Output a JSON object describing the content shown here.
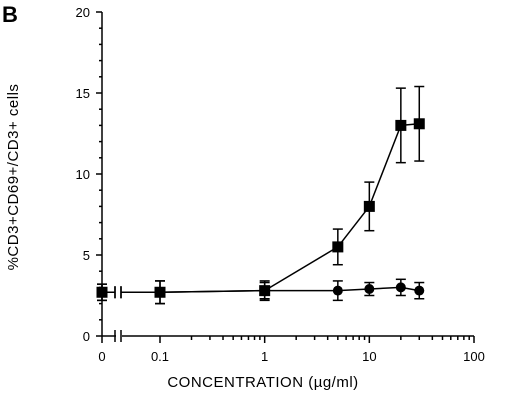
{
  "panel_label": "B",
  "chart_data": {
    "type": "scatter",
    "xlabel": "CONCENTRATION (µg/ml)",
    "ylabel": "%CD3+CD69+/CD3+ cells",
    "x_scale": "log with broken segment at 0",
    "x_tick_labels": [
      "0",
      "0.1",
      "1",
      "10",
      "100"
    ],
    "y_tick_labels": [
      "0",
      "5",
      "10",
      "15",
      "20"
    ],
    "ylim": [
      0,
      20
    ],
    "xlim": [
      0.1,
      100
    ],
    "grid": false,
    "legend": "none",
    "series": [
      {
        "marker": "square",
        "x": [
          0,
          0.1,
          1,
          5,
          10,
          20,
          30
        ],
        "y": [
          2.7,
          2.7,
          2.8,
          5.5,
          8.0,
          13.0,
          13.1
        ],
        "error": [
          0.5,
          0.7,
          0.6,
          1.1,
          1.5,
          2.3,
          2.3
        ]
      },
      {
        "marker": "circle",
        "x": [
          0,
          0.1,
          1,
          5,
          10,
          20,
          30
        ],
        "y": [
          2.7,
          2.7,
          2.8,
          2.8,
          2.9,
          3.0,
          2.8
        ],
        "error": [
          0.5,
          0.7,
          0.5,
          0.6,
          0.4,
          0.5,
          0.5
        ]
      }
    ]
  }
}
